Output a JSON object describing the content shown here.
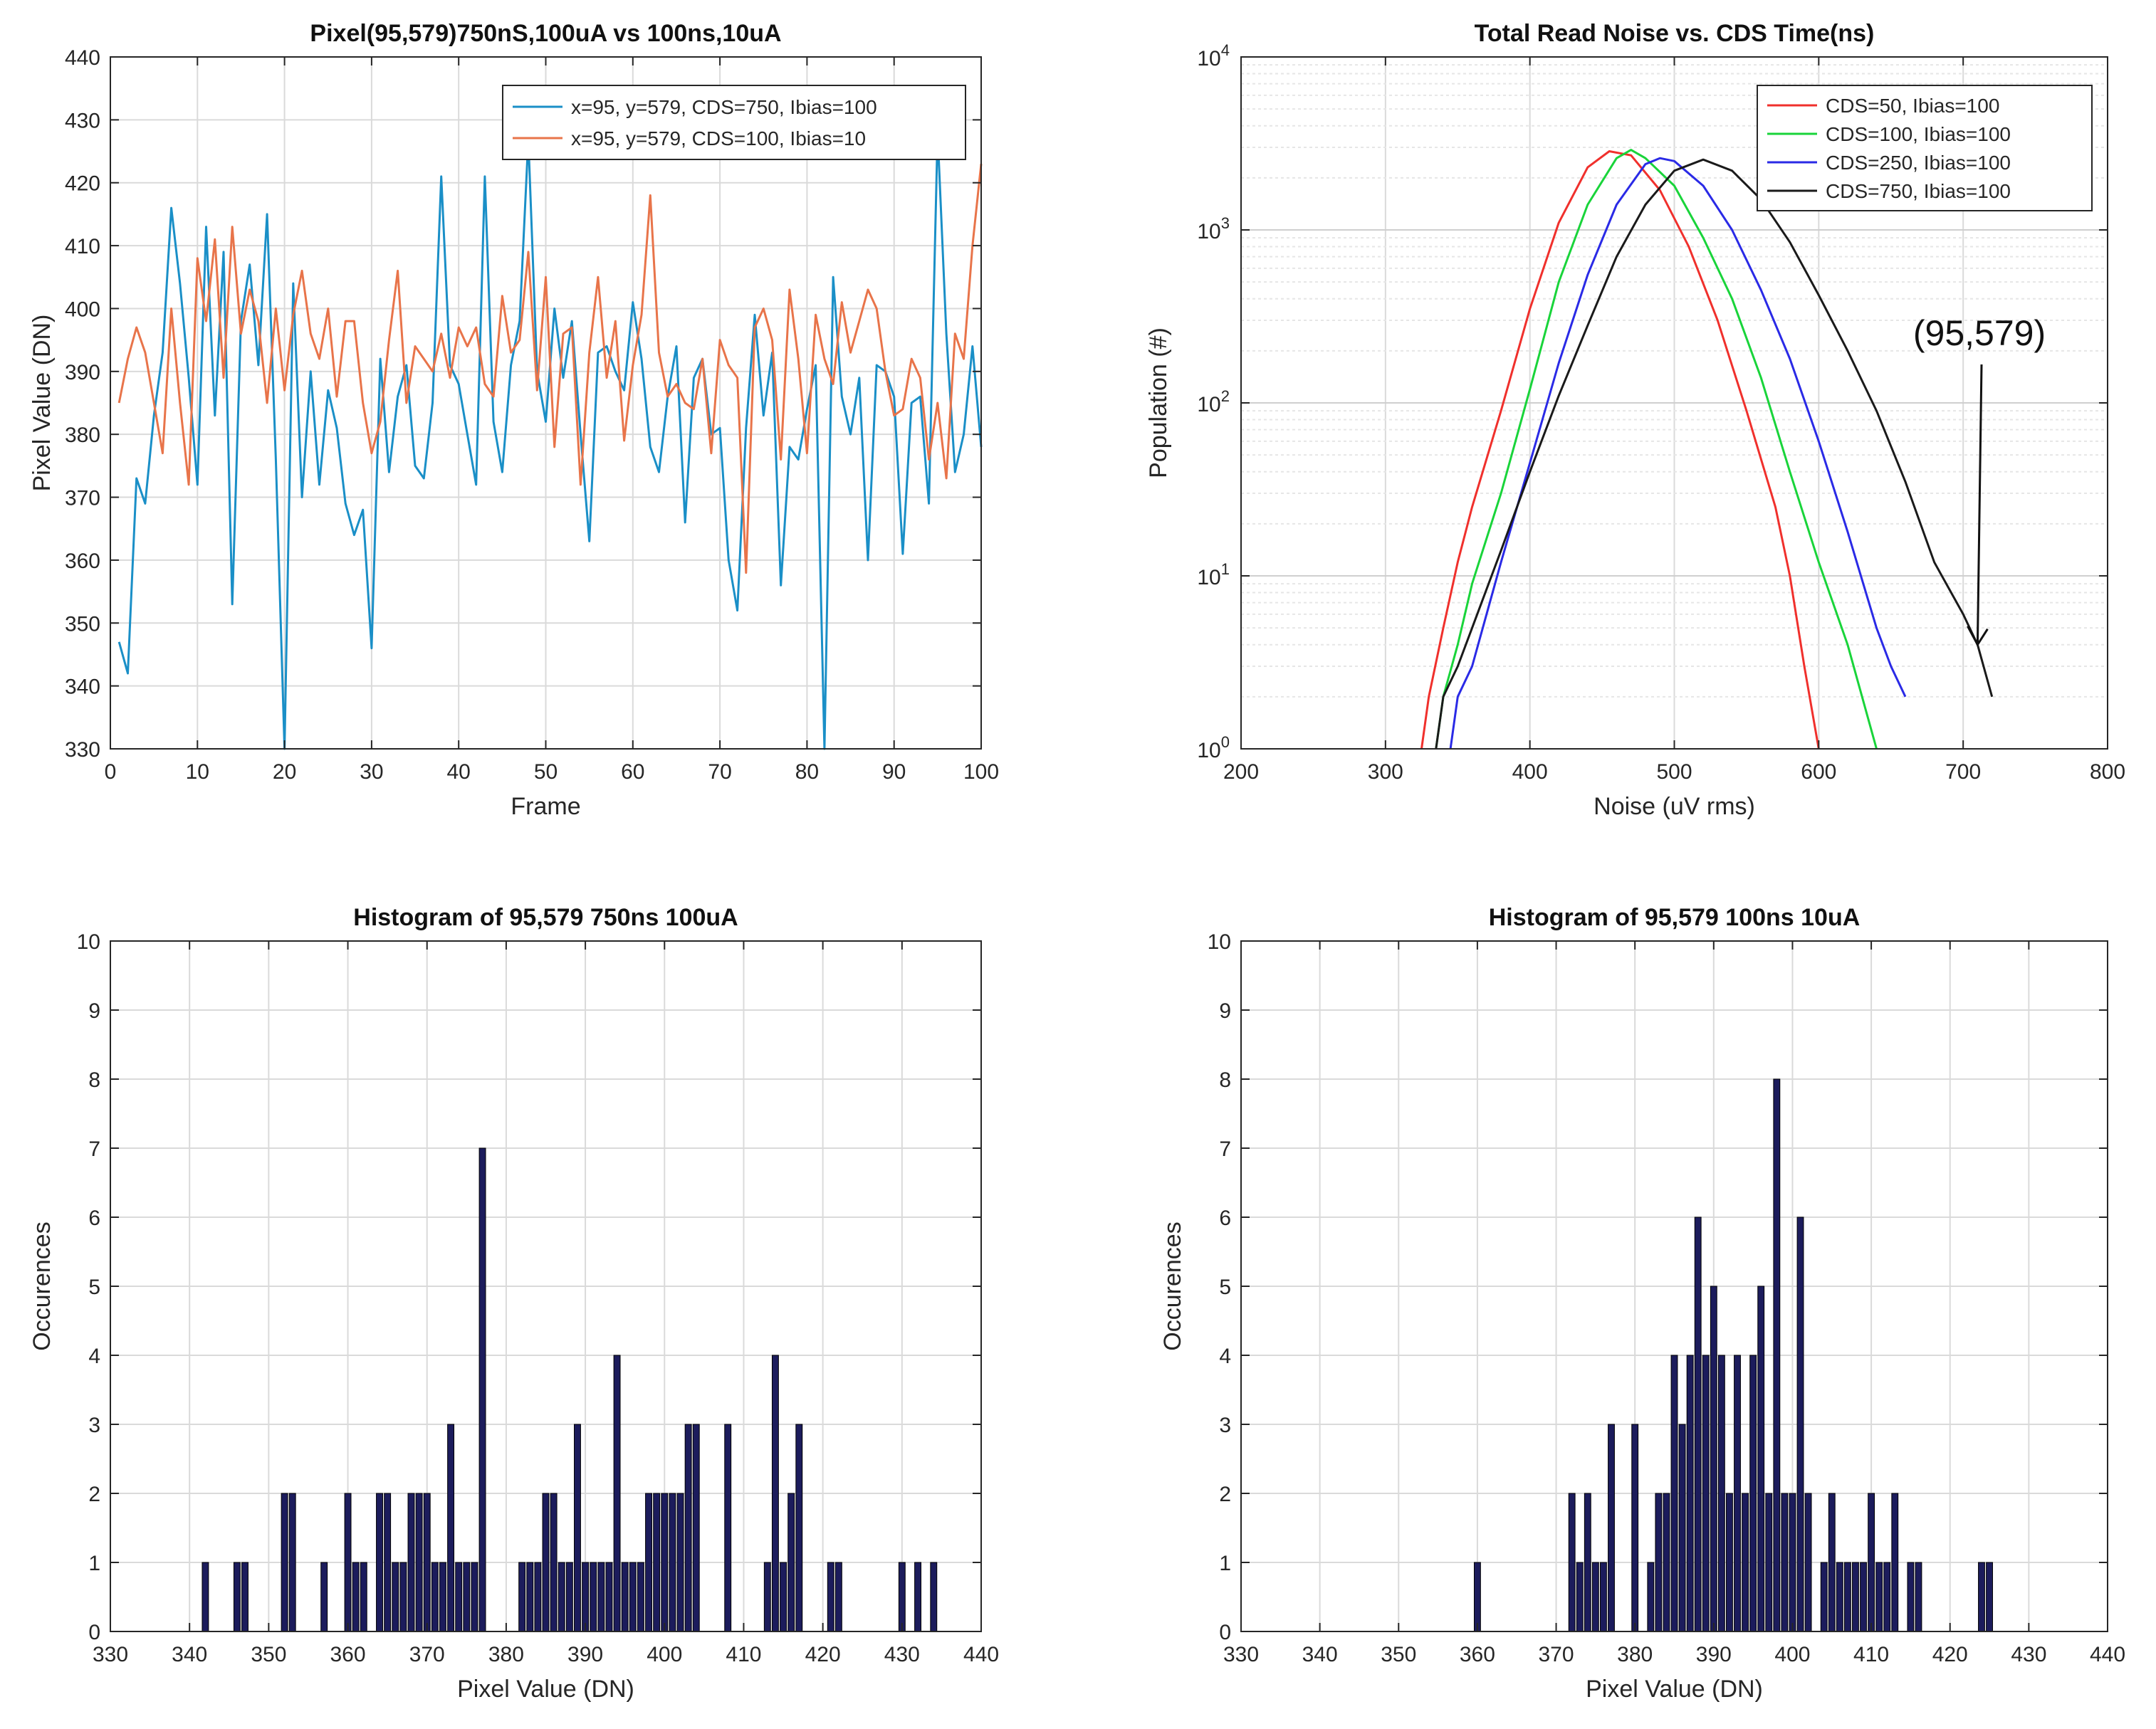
{
  "chart_data": [
    {
      "type": "line",
      "title": "Pixel(95,579)750nS,100uA vs 100ns,10uA",
      "xlabel": "Frame",
      "ylabel": "Pixel Value (DN)",
      "xlim": [
        0,
        100
      ],
      "ylim": [
        330,
        440
      ],
      "xticks": [
        0,
        10,
        20,
        30,
        40,
        50,
        60,
        70,
        80,
        90,
        100
      ],
      "yticks": [
        330,
        340,
        350,
        360,
        370,
        380,
        390,
        400,
        410,
        420,
        430,
        440
      ],
      "grid": true,
      "legend_position": "top-right",
      "series": [
        {
          "name": "x=95, y=579, CDS=750, Ibias=100",
          "color": "#1a8fc7",
          "x": [
            1,
            2,
            3,
            4,
            5,
            6,
            7,
            8,
            9,
            10,
            11,
            12,
            13,
            14,
            15,
            16,
            17,
            18,
            19,
            20,
            21,
            22,
            23,
            24,
            25,
            26,
            27,
            28,
            29,
            30,
            31,
            32,
            33,
            34,
            35,
            36,
            37,
            38,
            39,
            40,
            41,
            42,
            43,
            44,
            45,
            46,
            47,
            48,
            49,
            50,
            51,
            52,
            53,
            54,
            55,
            56,
            57,
            58,
            59,
            60,
            61,
            62,
            63,
            64,
            65,
            66,
            67,
            68,
            69,
            70,
            71,
            72,
            73,
            74,
            75,
            76,
            77,
            78,
            79,
            80,
            81,
            82,
            83,
            84,
            85,
            86,
            87,
            88,
            89,
            90,
            91,
            92,
            93,
            94,
            95,
            96,
            97,
            98,
            99,
            100
          ],
          "values": [
            347,
            342,
            373,
            369,
            383,
            393,
            416,
            404,
            389,
            372,
            413,
            383,
            409,
            353,
            398,
            407,
            391,
            415,
            376,
            330,
            404,
            370,
            390,
            372,
            387,
            381,
            369,
            364,
            368,
            346,
            392,
            374,
            386,
            391,
            375,
            373,
            385,
            421,
            391,
            388,
            380,
            372,
            421,
            382,
            374,
            391,
            398,
            427,
            390,
            382,
            400,
            389,
            398,
            380,
            363,
            393,
            394,
            390,
            387,
            401,
            392,
            378,
            374,
            386,
            394,
            366,
            389,
            392,
            380,
            381,
            360,
            352,
            381,
            399,
            383,
            393,
            356,
            378,
            376,
            384,
            391,
            330,
            405,
            386,
            380,
            389,
            360,
            391,
            390,
            386,
            361,
            385,
            386,
            369,
            428,
            396,
            374,
            380,
            394,
            378
          ]
        },
        {
          "name": "x=95, y=579, CDS=100, Ibias=10",
          "color": "#e8744a",
          "x": [
            1,
            2,
            3,
            4,
            5,
            6,
            7,
            8,
            9,
            10,
            11,
            12,
            13,
            14,
            15,
            16,
            17,
            18,
            19,
            20,
            21,
            22,
            23,
            24,
            25,
            26,
            27,
            28,
            29,
            30,
            31,
            32,
            33,
            34,
            35,
            36,
            37,
            38,
            39,
            40,
            41,
            42,
            43,
            44,
            45,
            46,
            47,
            48,
            49,
            50,
            51,
            52,
            53,
            54,
            55,
            56,
            57,
            58,
            59,
            60,
            61,
            62,
            63,
            64,
            65,
            66,
            67,
            68,
            69,
            70,
            71,
            72,
            73,
            74,
            75,
            76,
            77,
            78,
            79,
            80,
            81,
            82,
            83,
            84,
            85,
            86,
            87,
            88,
            89,
            90,
            91,
            92,
            93,
            94,
            95,
            96,
            97,
            98,
            99,
            100
          ],
          "values": [
            385,
            392,
            397,
            393,
            385,
            377,
            400,
            385,
            372,
            408,
            398,
            411,
            389,
            413,
            396,
            403,
            398,
            385,
            400,
            387,
            399,
            406,
            396,
            392,
            400,
            386,
            398,
            398,
            385,
            377,
            382,
            395,
            406,
            385,
            394,
            392,
            390,
            396,
            389,
            397,
            394,
            397,
            388,
            386,
            402,
            393,
            395,
            409,
            387,
            405,
            378,
            396,
            397,
            372,
            393,
            405,
            389,
            398,
            379,
            391,
            399,
            418,
            393,
            386,
            388,
            385,
            384,
            392,
            377,
            395,
            391,
            389,
            358,
            397,
            400,
            395,
            376,
            403,
            392,
            377,
            399,
            392,
            388,
            401,
            393,
            398,
            403,
            400,
            390,
            383,
            384,
            392,
            389,
            376,
            385,
            373,
            396,
            392,
            410,
            423
          ]
        }
      ]
    },
    {
      "type": "line",
      "title": "Total Read Noise vs. CDS Time(ns)",
      "xlabel": "Noise (uV rms)",
      "ylabel": "Population (#)",
      "xlim": [
        200,
        800
      ],
      "ylim": [
        1,
        10000
      ],
      "yscale": "log",
      "xticks": [
        200,
        300,
        400,
        500,
        600,
        700,
        800
      ],
      "yticks": [
        1,
        10,
        100,
        1000,
        10000
      ],
      "ytick_labels": [
        "10^0",
        "10^1",
        "10^2",
        "10^3",
        "10^4"
      ],
      "grid": true,
      "legend_position": "top-right",
      "annotation": "(95,579)",
      "series": [
        {
          "name": "CDS=50, Ibias=100",
          "color": "#f0302c",
          "x": [
            325,
            330,
            340,
            350,
            360,
            380,
            400,
            420,
            440,
            455,
            470,
            490,
            510,
            530,
            550,
            570,
            580,
            590,
            600
          ],
          "values": [
            1,
            2,
            5,
            12,
            25,
            90,
            350,
            1100,
            2300,
            2850,
            2700,
            1700,
            800,
            300,
            90,
            25,
            10,
            3,
            1
          ]
        },
        {
          "name": "CDS=100, Ibias=100",
          "color": "#19d43a",
          "x": [
            335,
            340,
            350,
            360,
            380,
            400,
            420,
            440,
            460,
            470,
            480,
            500,
            520,
            540,
            560,
            580,
            600,
            620,
            630,
            640
          ],
          "values": [
            1,
            2,
            4,
            9,
            30,
            120,
            500,
            1400,
            2600,
            2900,
            2600,
            1800,
            900,
            400,
            140,
            40,
            12,
            4,
            2,
            1
          ]
        },
        {
          "name": "CDS=250, Ibias=100",
          "color": "#2a2ae6",
          "x": [
            345,
            350,
            360,
            380,
            400,
            420,
            440,
            460,
            480,
            490,
            500,
            520,
            540,
            560,
            580,
            600,
            620,
            640,
            650,
            660
          ],
          "values": [
            1,
            2,
            3,
            12,
            45,
            170,
            550,
            1400,
            2400,
            2600,
            2500,
            1800,
            1000,
            450,
            180,
            60,
            18,
            5,
            3,
            2
          ]
        },
        {
          "name": "CDS=750, Ibias=100",
          "color": "#1a1a1a",
          "x": [
            335,
            340,
            350,
            360,
            380,
            400,
            420,
            440,
            460,
            480,
            500,
            520,
            540,
            560,
            580,
            600,
            620,
            640,
            660,
            680,
            700,
            710,
            720
          ],
          "values": [
            1,
            2,
            3,
            5,
            14,
            40,
            110,
            280,
            700,
            1400,
            2200,
            2550,
            2200,
            1500,
            850,
            420,
            200,
            90,
            35,
            12,
            6,
            4,
            2
          ]
        }
      ]
    },
    {
      "type": "bar",
      "title": "Histogram of 95,579 750ns 100uA",
      "xlabel": "Pixel Value (DN)",
      "ylabel": "Occurences",
      "xlim": [
        330,
        440
      ],
      "ylim": [
        0,
        10
      ],
      "xticks": [
        330,
        340,
        350,
        360,
        370,
        380,
        390,
        400,
        410,
        420,
        430,
        440
      ],
      "yticks": [
        0,
        1,
        2,
        3,
        4,
        5,
        6,
        7,
        8,
        9,
        10
      ],
      "grid": true,
      "bar_color": "#1c1c5c",
      "x": [
        342,
        346,
        347,
        352,
        353,
        357,
        360,
        361,
        362,
        364,
        365,
        366,
        367,
        368,
        369,
        370,
        371,
        372,
        373,
        374,
        375,
        376,
        377,
        382,
        383,
        384,
        385,
        386,
        387,
        388,
        389,
        390,
        391,
        392,
        393,
        394,
        395,
        396,
        397,
        398,
        399,
        400,
        401,
        402,
        403,
        404,
        408,
        413,
        414,
        415,
        416,
        417,
        421,
        422,
        430,
        432,
        434
      ],
      "values": [
        1,
        1,
        1,
        2,
        2,
        1,
        2,
        1,
        1,
        2,
        2,
        1,
        1,
        2,
        2,
        2,
        1,
        1,
        3,
        1,
        1,
        1,
        7,
        1,
        1,
        1,
        2,
        2,
        1,
        1,
        3,
        1,
        1,
        1,
        1,
        4,
        1,
        1,
        1,
        2,
        2,
        2,
        2,
        2,
        3,
        3,
        3,
        1,
        4,
        1,
        2,
        3,
        1,
        1,
        1,
        1,
        1
      ]
    },
    {
      "type": "bar",
      "title": "Histogram of 95,579 100ns 10uA",
      "xlabel": "Pixel Value (DN)",
      "ylabel": "Occurences",
      "xlim": [
        330,
        440
      ],
      "ylim": [
        0,
        10
      ],
      "xticks": [
        330,
        340,
        350,
        360,
        370,
        380,
        390,
        400,
        410,
        420,
        430,
        440
      ],
      "yticks": [
        0,
        1,
        2,
        3,
        4,
        5,
        6,
        7,
        8,
        9,
        10
      ],
      "grid": true,
      "bar_color": "#1c1c5c",
      "x": [
        360,
        372,
        373,
        374,
        375,
        376,
        377,
        380,
        382,
        383,
        384,
        385,
        386,
        387,
        388,
        389,
        390,
        391,
        392,
        393,
        394,
        395,
        396,
        397,
        398,
        399,
        400,
        401,
        402,
        404,
        405,
        406,
        407,
        408,
        409,
        410,
        411,
        412,
        413,
        415,
        416,
        424,
        425
      ],
      "values": [
        1,
        2,
        1,
        2,
        1,
        1,
        3,
        3,
        1,
        2,
        2,
        4,
        3,
        4,
        6,
        4,
        5,
        4,
        2,
        4,
        2,
        4,
        5,
        2,
        8,
        2,
        2,
        6,
        2,
        1,
        2,
        1,
        1,
        1,
        1,
        2,
        1,
        1,
        2,
        1,
        1,
        1,
        1
      ]
    }
  ]
}
